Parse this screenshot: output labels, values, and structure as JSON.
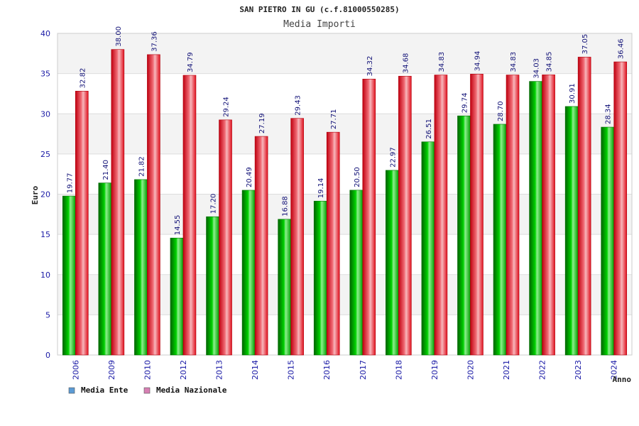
{
  "chart_data": {
    "type": "bar",
    "title": "SAN PIETRO IN GU (c.f.81000550285)",
    "subtitle": "Media Importi",
    "xlabel": "Anno",
    "ylabel": "Euro",
    "ylim": [
      0,
      40
    ],
    "yticks": [
      "0",
      "5",
      "10",
      "15",
      "20",
      "25",
      "30",
      "35",
      "40"
    ],
    "grid": true,
    "legend_position": "bottom-left",
    "categories": [
      "2006",
      "2009",
      "2010",
      "2012",
      "2013",
      "2014",
      "2015",
      "2016",
      "2017",
      "2018",
      "2019",
      "2020",
      "2021",
      "2022",
      "2023",
      "2024"
    ],
    "series": [
      {
        "name": "Media Ente",
        "color": "#00b000",
        "legend_color": "#5b9bd5",
        "values": [
          19.77,
          21.4,
          21.82,
          14.55,
          17.2,
          20.49,
          16.88,
          19.14,
          20.5,
          22.97,
          26.51,
          29.74,
          28.7,
          34.03,
          30.91,
          28.34
        ],
        "labels": [
          "19.77",
          "21.40",
          "21.82",
          "14.55",
          "17.20",
          "20.49",
          "16.88",
          "19.14",
          "20.50",
          "22.97",
          "26.51",
          "29.74",
          "28.70",
          "34.03",
          "30.91",
          "28.34"
        ]
      },
      {
        "name": "Media Nazionale",
        "color": "#e8101e",
        "legend_color": "#d77fb3",
        "values": [
          32.82,
          38.0,
          37.36,
          34.79,
          29.24,
          27.19,
          29.43,
          27.71,
          34.32,
          34.68,
          34.83,
          34.94,
          34.83,
          34.85,
          37.05,
          36.46
        ],
        "labels": [
          "32.82",
          "38.00",
          "37.36",
          "34.79",
          "29.24",
          "27.19",
          "29.43",
          "27.71",
          "34.32",
          "34.68",
          "34.83",
          "34.94",
          "34.83",
          "34.85",
          "37.05",
          "36.46"
        ]
      }
    ]
  }
}
